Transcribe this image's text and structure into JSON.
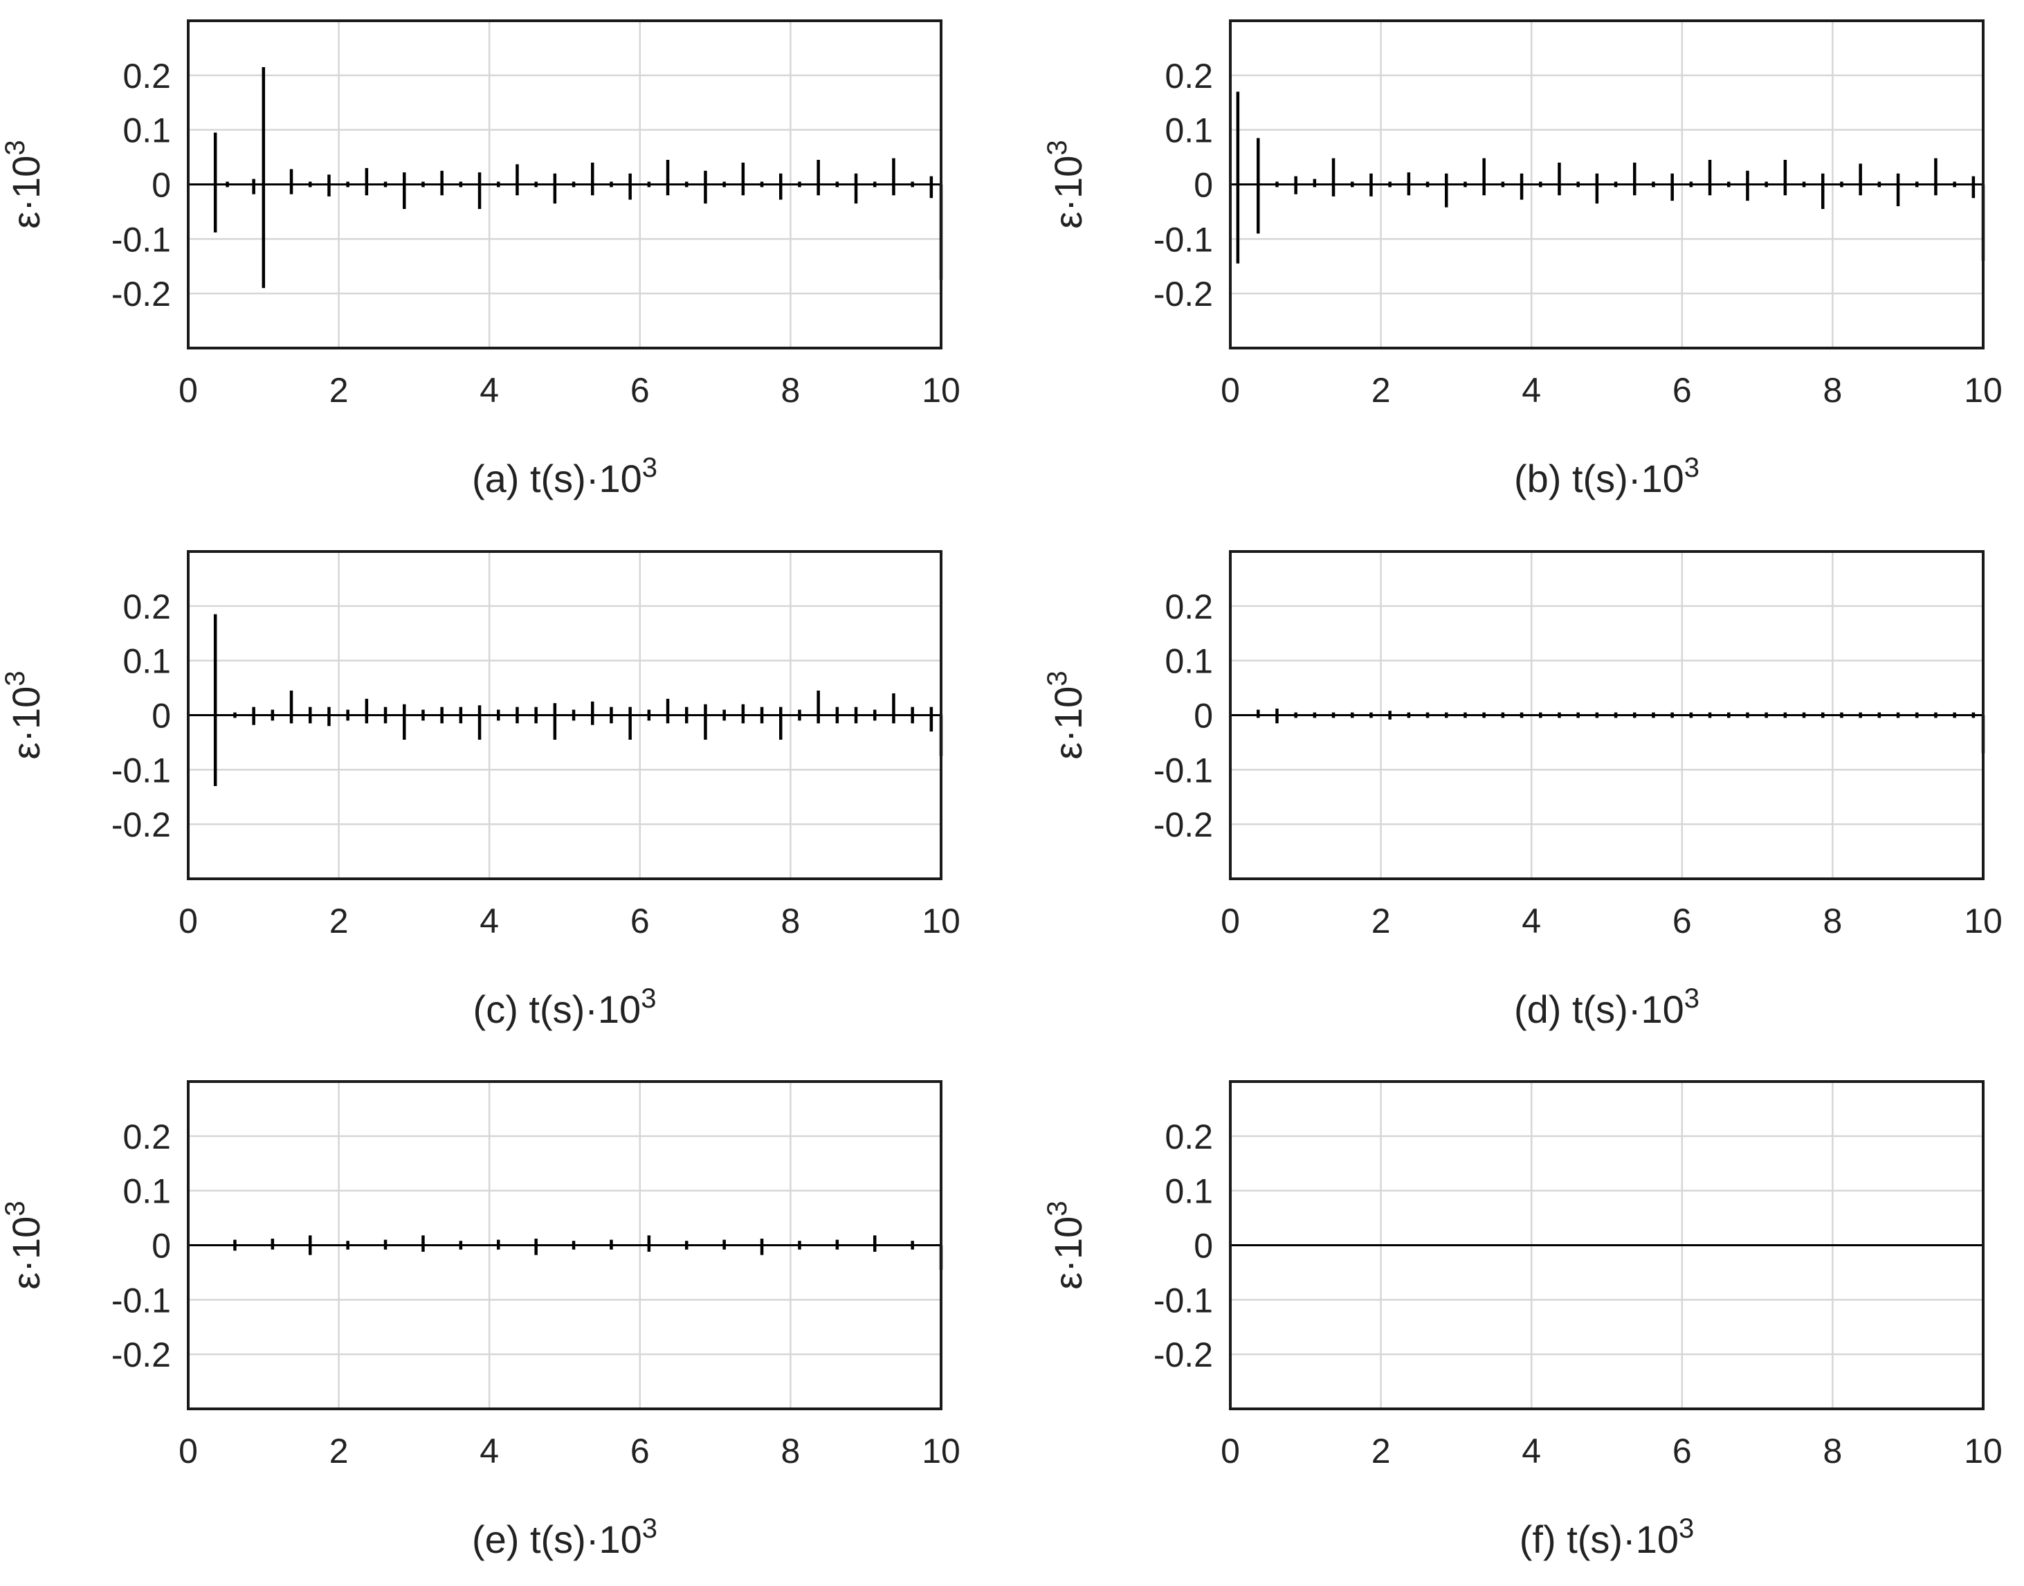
{
  "chart_data": [
    {
      "type": "line",
      "panel_label": "(a)",
      "xlabel": "t(s)·10",
      "xlabel_sup": "3",
      "ylabel": "ε·10",
      "ylabel_sup": "3",
      "xlim": [
        0,
        10
      ],
      "ylim": [
        -0.3,
        0.3
      ],
      "xticks": [
        "0",
        "2",
        "4",
        "6",
        "8",
        "10"
      ],
      "yticks": [
        "0.2",
        "0.1",
        "0",
        "-0.1",
        "-0.2"
      ],
      "grid": true,
      "series": [
        {
          "x": [
            0.36,
            0.52,
            0.87,
            1.0,
            1.37,
            1.62,
            1.87,
            2.12,
            2.37,
            2.62,
            2.87,
            3.12,
            3.37,
            3.62,
            3.87,
            4.12,
            4.37,
            4.62,
            4.87,
            5.12,
            5.37,
            5.62,
            5.87,
            6.12,
            6.37,
            6.62,
            6.87,
            7.12,
            7.37,
            7.62,
            7.87,
            8.12,
            8.37,
            8.62,
            8.87,
            9.12,
            9.37,
            9.62,
            9.87,
            10.0
          ],
          "ymax": [
            0.095,
            0.005,
            0.01,
            0.215,
            0.028,
            0.005,
            0.018,
            0.005,
            0.03,
            0.005,
            0.022,
            0.005,
            0.025,
            0.005,
            0.022,
            0.005,
            0.037,
            0.005,
            0.02,
            0.005,
            0.04,
            0.005,
            0.02,
            0.005,
            0.045,
            0.005,
            0.025,
            0.005,
            0.04,
            0.005,
            0.02,
            0.005,
            0.045,
            0.005,
            0.02,
            0.005,
            0.048,
            0.005,
            0.015,
            0.0
          ],
          "ymin": [
            -0.088,
            -0.005,
            -0.018,
            -0.19,
            -0.018,
            -0.005,
            -0.022,
            -0.005,
            -0.02,
            -0.005,
            -0.045,
            -0.005,
            -0.02,
            -0.005,
            -0.045,
            -0.005,
            -0.02,
            -0.005,
            -0.035,
            -0.005,
            -0.02,
            -0.005,
            -0.028,
            -0.005,
            -0.02,
            -0.005,
            -0.035,
            -0.005,
            -0.02,
            -0.005,
            -0.028,
            -0.005,
            -0.02,
            -0.005,
            -0.035,
            -0.005,
            -0.02,
            -0.005,
            -0.025,
            -0.175
          ]
        }
      ]
    },
    {
      "type": "line",
      "panel_label": "(b)",
      "xlabel": "t(s)·10",
      "xlabel_sup": "3",
      "ylabel": "ε·10",
      "ylabel_sup": "3",
      "xlim": [
        0,
        10
      ],
      "ylim": [
        -0.3,
        0.3
      ],
      "xticks": [
        "0",
        "2",
        "4",
        "6",
        "8",
        "10"
      ],
      "yticks": [
        "0.2",
        "0.1",
        "0",
        "-0.1",
        "-0.2"
      ],
      "grid": true,
      "series": [
        {
          "x": [
            0.1,
            0.37,
            0.62,
            0.87,
            1.12,
            1.37,
            1.62,
            1.87,
            2.12,
            2.37,
            2.62,
            2.87,
            3.12,
            3.37,
            3.62,
            3.87,
            4.12,
            4.37,
            4.62,
            4.87,
            5.12,
            5.37,
            5.62,
            5.87,
            6.12,
            6.37,
            6.62,
            6.87,
            7.12,
            7.37,
            7.62,
            7.87,
            8.12,
            8.37,
            8.62,
            8.87,
            9.12,
            9.37,
            9.62,
            9.87,
            10.0
          ],
          "ymax": [
            0.17,
            0.085,
            0.005,
            0.015,
            0.01,
            0.048,
            0.005,
            0.02,
            0.005,
            0.022,
            0.005,
            0.02,
            0.005,
            0.048,
            0.005,
            0.02,
            0.005,
            0.04,
            0.005,
            0.02,
            0.005,
            0.04,
            0.005,
            0.02,
            0.005,
            0.045,
            0.005,
            0.025,
            0.005,
            0.045,
            0.005,
            0.02,
            0.005,
            0.038,
            0.005,
            0.02,
            0.005,
            0.048,
            0.005,
            0.015,
            0.0
          ],
          "ymin": [
            -0.145,
            -0.09,
            -0.005,
            -0.018,
            -0.005,
            -0.022,
            -0.005,
            -0.022,
            -0.005,
            -0.02,
            -0.005,
            -0.042,
            -0.005,
            -0.02,
            -0.005,
            -0.028,
            -0.005,
            -0.02,
            -0.005,
            -0.035,
            -0.005,
            -0.02,
            -0.005,
            -0.03,
            -0.005,
            -0.02,
            -0.005,
            -0.03,
            -0.005,
            -0.02,
            -0.005,
            -0.045,
            -0.005,
            -0.02,
            -0.005,
            -0.04,
            -0.005,
            -0.02,
            -0.005,
            -0.025,
            -0.14
          ]
        }
      ]
    },
    {
      "type": "line",
      "panel_label": "(c)",
      "xlabel": "t(s)·10",
      "xlabel_sup": "3",
      "ylabel": "ε·10",
      "ylabel_sup": "3",
      "xlim": [
        0,
        10
      ],
      "ylim": [
        -0.3,
        0.3
      ],
      "xticks": [
        "0",
        "2",
        "4",
        "6",
        "8",
        "10"
      ],
      "yticks": [
        "0.2",
        "0.1",
        "0",
        "-0.1",
        "-0.2"
      ],
      "grid": true,
      "series": [
        {
          "x": [
            0.36,
            0.62,
            0.87,
            1.12,
            1.37,
            1.62,
            1.87,
            2.12,
            2.37,
            2.62,
            2.87,
            3.12,
            3.37,
            3.62,
            3.87,
            4.12,
            4.37,
            4.62,
            4.87,
            5.12,
            5.37,
            5.62,
            5.87,
            6.12,
            6.37,
            6.62,
            6.87,
            7.12,
            7.37,
            7.62,
            7.87,
            8.12,
            8.37,
            8.62,
            8.87,
            9.12,
            9.37,
            9.62,
            9.87,
            10.0
          ],
          "ymax": [
            0.185,
            0.005,
            0.015,
            0.01,
            0.045,
            0.015,
            0.015,
            0.01,
            0.03,
            0.015,
            0.02,
            0.01,
            0.015,
            0.015,
            0.018,
            0.01,
            0.015,
            0.015,
            0.022,
            0.01,
            0.025,
            0.015,
            0.015,
            0.01,
            0.03,
            0.015,
            0.02,
            0.01,
            0.02,
            0.015,
            0.015,
            0.01,
            0.045,
            0.015,
            0.015,
            0.01,
            0.04,
            0.015,
            0.015,
            0.0
          ],
          "ymin": [
            -0.13,
            -0.005,
            -0.018,
            -0.01,
            -0.015,
            -0.015,
            -0.02,
            -0.01,
            -0.015,
            -0.015,
            -0.045,
            -0.01,
            -0.015,
            -0.015,
            -0.045,
            -0.01,
            -0.015,
            -0.015,
            -0.045,
            -0.01,
            -0.018,
            -0.015,
            -0.045,
            -0.01,
            -0.015,
            -0.015,
            -0.045,
            -0.01,
            -0.015,
            -0.015,
            -0.045,
            -0.01,
            -0.015,
            -0.015,
            -0.015,
            -0.01,
            -0.015,
            -0.015,
            -0.03,
            -0.075
          ]
        }
      ]
    },
    {
      "type": "line",
      "panel_label": "(d)",
      "xlabel": "t(s)·10",
      "xlabel_sup": "3",
      "ylabel": "ε·10",
      "ylabel_sup": "3",
      "xlim": [
        0,
        10
      ],
      "ylim": [
        -0.3,
        0.3
      ],
      "xticks": [
        "0",
        "2",
        "4",
        "6",
        "8",
        "10"
      ],
      "yticks": [
        "0.2",
        "0.1",
        "0",
        "-0.1",
        "-0.2"
      ],
      "grid": true,
      "series": [
        {
          "x": [
            0.37,
            0.62,
            0.87,
            1.12,
            1.37,
            1.62,
            1.87,
            2.12,
            2.37,
            2.62,
            2.87,
            3.12,
            3.37,
            3.62,
            3.87,
            4.12,
            4.37,
            4.62,
            4.87,
            5.12,
            5.37,
            5.62,
            5.87,
            6.12,
            6.37,
            6.62,
            6.87,
            7.12,
            7.37,
            7.62,
            7.87,
            8.12,
            8.37,
            8.62,
            8.87,
            9.12,
            9.37,
            9.62,
            9.87,
            10.0
          ],
          "ymax": [
            0.01,
            0.012,
            0.005,
            0.005,
            0.005,
            0.005,
            0.005,
            0.008,
            0.005,
            0.005,
            0.005,
            0.005,
            0.005,
            0.005,
            0.005,
            0.005,
            0.005,
            0.005,
            0.005,
            0.005,
            0.005,
            0.005,
            0.005,
            0.005,
            0.005,
            0.005,
            0.005,
            0.005,
            0.005,
            0.005,
            0.005,
            0.005,
            0.005,
            0.005,
            0.005,
            0.005,
            0.005,
            0.005,
            0.005,
            0.0
          ],
          "ymin": [
            -0.005,
            -0.015,
            -0.005,
            -0.005,
            -0.005,
            -0.005,
            -0.005,
            -0.008,
            -0.005,
            -0.005,
            -0.005,
            -0.005,
            -0.005,
            -0.005,
            -0.005,
            -0.005,
            -0.005,
            -0.005,
            -0.005,
            -0.005,
            -0.005,
            -0.005,
            -0.005,
            -0.005,
            -0.005,
            -0.005,
            -0.005,
            -0.005,
            -0.005,
            -0.005,
            -0.005,
            -0.005,
            -0.005,
            -0.005,
            -0.005,
            -0.005,
            -0.005,
            -0.005,
            -0.005,
            -0.07
          ]
        }
      ]
    },
    {
      "type": "line",
      "panel_label": "(e)",
      "xlabel": "t(s)·10",
      "xlabel_sup": "3",
      "ylabel": "ε·10",
      "ylabel_sup": "3",
      "xlim": [
        0,
        10
      ],
      "ylim": [
        -0.3,
        0.3
      ],
      "xticks": [
        "0",
        "2",
        "4",
        "6",
        "8",
        "10"
      ],
      "yticks": [
        "0.2",
        "0.1",
        "0",
        "-0.1",
        "-0.2"
      ],
      "grid": true,
      "series": [
        {
          "x": [
            0.62,
            1.12,
            1.62,
            2.12,
            2.62,
            3.12,
            3.62,
            4.12,
            4.62,
            5.12,
            5.62,
            6.12,
            6.62,
            7.12,
            7.62,
            8.12,
            8.62,
            9.12,
            9.62,
            10.0
          ],
          "ymax": [
            0.01,
            0.012,
            0.018,
            0.008,
            0.01,
            0.018,
            0.008,
            0.01,
            0.012,
            0.008,
            0.01,
            0.018,
            0.008,
            0.01,
            0.012,
            0.008,
            0.01,
            0.018,
            0.008,
            0.0
          ],
          "ymin": [
            -0.01,
            -0.008,
            -0.018,
            -0.008,
            -0.008,
            -0.012,
            -0.008,
            -0.008,
            -0.018,
            -0.008,
            -0.008,
            -0.012,
            -0.008,
            -0.008,
            -0.018,
            -0.008,
            -0.008,
            -0.012,
            -0.008,
            -0.045
          ]
        }
      ]
    },
    {
      "type": "line",
      "panel_label": "(f)",
      "xlabel": "t(s)·10",
      "xlabel_sup": "3",
      "ylabel": "ε·10",
      "ylabel_sup": "3",
      "xlim": [
        0,
        10
      ],
      "ylim": [
        -0.3,
        0.3
      ],
      "xticks": [
        "0",
        "2",
        "4",
        "6",
        "8",
        "10"
      ],
      "yticks": [
        "0.2",
        "0.1",
        "0",
        "-0.1",
        "-0.2"
      ],
      "grid": true,
      "series": [
        {
          "x": [],
          "ymax": [],
          "ymin": []
        }
      ]
    }
  ]
}
